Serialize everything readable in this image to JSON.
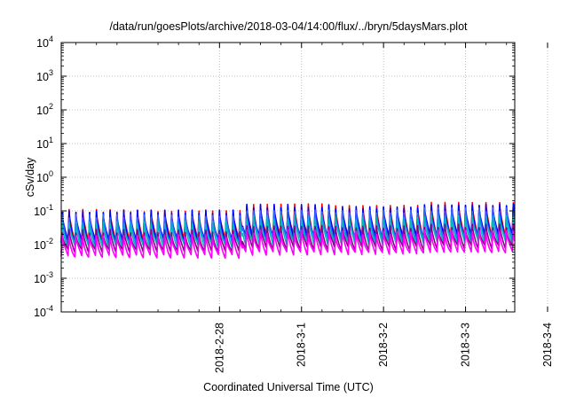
{
  "chart_data": {
    "type": "line",
    "title": "/data/run/goesPlots/archive/2018-03-04/14:00/flux/../bryn/5daysMars.plot",
    "xlabel": "Coordinated Universal Time (UTC)",
    "ylabel": "cSv/day",
    "yscale": "log",
    "ylim_exponents": [
      -4,
      4
    ],
    "y_ticks": [
      {
        "base": "10",
        "exp": "-4"
      },
      {
        "base": "10",
        "exp": "-3"
      },
      {
        "base": "10",
        "exp": "-2"
      },
      {
        "base": "10",
        "exp": "-1"
      },
      {
        "base": "10",
        "exp": "0"
      },
      {
        "base": "10",
        "exp": "1"
      },
      {
        "base": "10",
        "exp": "2"
      },
      {
        "base": "10",
        "exp": "3"
      },
      {
        "base": "10",
        "exp": "4"
      }
    ],
    "xlim_days": [
      -1.93,
      3.6
    ],
    "x_ticks": [
      {
        "label": "2018-2-28",
        "day": 0
      },
      {
        "label": "2018-3-1",
        "day": 1
      },
      {
        "label": "2018-3-2",
        "day": 2
      },
      {
        "label": "2018-3-3",
        "day": 3
      },
      {
        "label": "2018-3-4",
        "day": 4
      }
    ],
    "grid": true,
    "legend": "none",
    "cycle_hours": 2,
    "series": [
      {
        "color": "#ff0000",
        "peaks": [
          0.1,
          0.1,
          0.15,
          0.13,
          0.16
        ],
        "troughs": [
          0.013,
          0.014,
          0.018,
          0.017,
          0.019
        ]
      },
      {
        "color": "#0000ff",
        "peaks": [
          0.095,
          0.095,
          0.14,
          0.125,
          0.15
        ],
        "troughs": [
          0.012,
          0.013,
          0.017,
          0.016,
          0.018
        ]
      },
      {
        "color": "#3366ff",
        "peaks": [
          0.07,
          0.07,
          0.1,
          0.095,
          0.11
        ],
        "troughs": [
          0.01,
          0.011,
          0.014,
          0.013,
          0.015
        ]
      },
      {
        "color": "#00bbbb",
        "peaks": [
          0.045,
          0.045,
          0.065,
          0.06,
          0.07
        ],
        "troughs": [
          0.0085,
          0.009,
          0.011,
          0.011,
          0.012
        ]
      },
      {
        "color": "#880088",
        "peaks": [
          0.025,
          0.025,
          0.035,
          0.033,
          0.036
        ],
        "troughs": [
          0.0065,
          0.0065,
          0.008,
          0.0078,
          0.0085
        ]
      },
      {
        "color": "#ff00ff",
        "peaks": [
          0.018,
          0.018,
          0.024,
          0.022,
          0.025
        ],
        "troughs": [
          0.0045,
          0.0045,
          0.0055,
          0.0055,
          0.006
        ]
      }
    ]
  }
}
